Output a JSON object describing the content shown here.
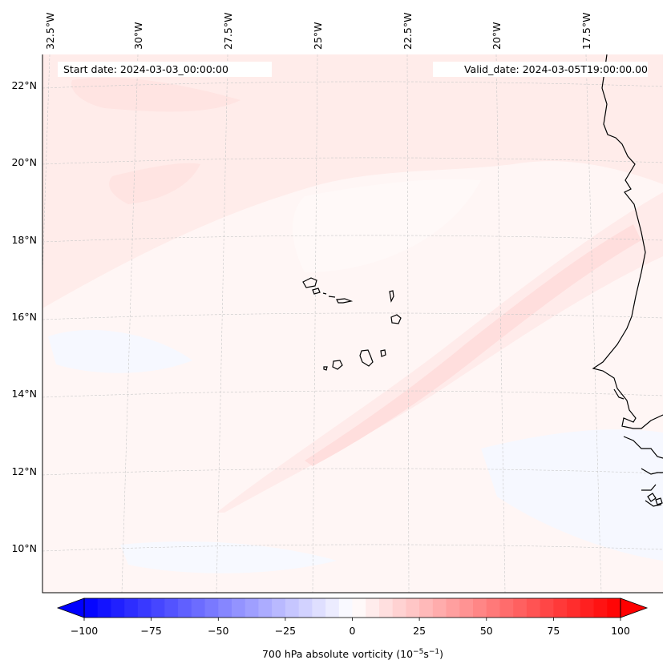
{
  "map": {
    "title_left": "Start date: 2024-03-03_00:00:00",
    "title_right": "Valid_date: 2024-03-05T19:00:00.00",
    "lon_labels": [
      "32.5°W",
      "30°W",
      "27.5°W",
      "25°W",
      "22.5°W",
      "20°W",
      "17.5°W"
    ],
    "lat_labels": [
      "22°N",
      "20°N",
      "18°N",
      "16°N",
      "14°N",
      "12°N",
      "10°N"
    ],
    "colorbar": {
      "label_prefix": "700 hPa absolute vorticity (10",
      "label_exp1": "−5",
      "label_mid": "s",
      "label_exp2": "−1",
      "label_suffix": ")",
      "min": -100,
      "max": 100,
      "step": 5,
      "ticks": [
        "−100",
        "−75",
        "−50",
        "−25",
        "0",
        "25",
        "50",
        "75",
        "100"
      ],
      "colors": {
        "neg": "#0000ff",
        "mid": "#ffffff",
        "pos": "#ff0000"
      }
    },
    "field_colors": {
      "background": "#fff6f5",
      "band_light": "#ffeceb",
      "band_mid": "#ffe4e2",
      "blue_patch": "#f6f8ff"
    }
  }
}
